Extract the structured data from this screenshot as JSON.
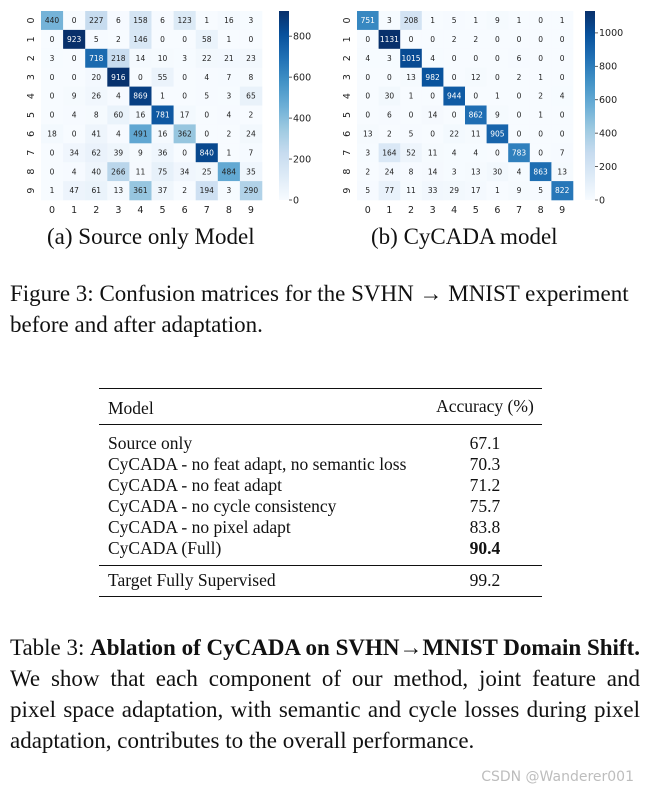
{
  "figure": {
    "left_caption": "(a) Source only Model",
    "right_caption": "(b) CyCADA model",
    "caption_label": "Figure 3:",
    "caption_text_1": "Confusion matrices for the SVHN",
    "caption_arrow": "→",
    "caption_text_2": "MNIST experiment before and after adaptation.",
    "colormap": [
      "#f7fbff",
      "#deebf7",
      "#c6dbef",
      "#9ecae1",
      "#6baed6",
      "#4292c6",
      "#2171b5",
      "#08519c",
      "#08306b"
    ]
  },
  "chart_data": [
    {
      "type": "heatmap",
      "title": "(a) Source only Model",
      "x_ticks": [
        "0",
        "1",
        "2",
        "3",
        "4",
        "5",
        "6",
        "7",
        "8",
        "9"
      ],
      "y_ticks": [
        "0",
        "1",
        "2",
        "3",
        "4",
        "5",
        "6",
        "7",
        "8",
        "9"
      ],
      "colorbar_ticks": [
        0,
        200,
        400,
        600,
        800
      ],
      "vmax": 923,
      "values": [
        [
          440,
          0,
          227,
          6,
          158,
          6,
          123,
          1,
          16,
          3
        ],
        [
          0,
          923,
          5,
          2,
          146,
          0,
          0,
          58,
          1,
          0
        ],
        [
          3,
          0,
          718,
          218,
          14,
          10,
          3,
          22,
          21,
          23
        ],
        [
          0,
          0,
          20,
          916,
          0,
          55,
          0,
          4,
          7,
          8
        ],
        [
          0,
          9,
          26,
          4,
          869,
          1,
          0,
          5,
          3,
          65
        ],
        [
          0,
          4,
          8,
          60,
          16,
          781,
          17,
          0,
          4,
          2
        ],
        [
          18,
          0,
          41,
          4,
          491,
          16,
          362,
          0,
          2,
          24
        ],
        [
          0,
          34,
          62,
          39,
          9,
          36,
          0,
          840,
          1,
          7
        ],
        [
          0,
          4,
          40,
          266,
          11,
          75,
          34,
          25,
          484,
          35
        ],
        [
          1,
          47,
          61,
          13,
          361,
          37,
          2,
          194,
          3,
          290
        ]
      ]
    },
    {
      "type": "heatmap",
      "title": "(b) CyCADA model",
      "x_ticks": [
        "0",
        "1",
        "2",
        "3",
        "4",
        "5",
        "6",
        "7",
        "8",
        "9"
      ],
      "y_ticks": [
        "0",
        "1",
        "2",
        "3",
        "4",
        "5",
        "6",
        "7",
        "8",
        "9"
      ],
      "colorbar_ticks": [
        0,
        200,
        400,
        600,
        800,
        1000
      ],
      "vmax": 1131,
      "values": [
        [
          751,
          3,
          208,
          1,
          5,
          1,
          9,
          1,
          0,
          1
        ],
        [
          0,
          1131,
          0,
          0,
          2,
          2,
          0,
          0,
          0,
          0
        ],
        [
          4,
          3,
          1015,
          4,
          0,
          0,
          0,
          6,
          0,
          0
        ],
        [
          0,
          0,
          13,
          982,
          0,
          12,
          0,
          2,
          1,
          0
        ],
        [
          0,
          30,
          1,
          0,
          944,
          0,
          1,
          0,
          2,
          4
        ],
        [
          0,
          6,
          0,
          14,
          0,
          862,
          9,
          0,
          1,
          0
        ],
        [
          13,
          2,
          5,
          0,
          22,
          11,
          905,
          0,
          0,
          0
        ],
        [
          3,
          164,
          52,
          11,
          4,
          4,
          0,
          783,
          0,
          7
        ],
        [
          2,
          24,
          8,
          14,
          3,
          13,
          30,
          4,
          863,
          13
        ],
        [
          5,
          77,
          11,
          33,
          29,
          17,
          1,
          9,
          5,
          822
        ]
      ]
    }
  ],
  "table": {
    "header_model": "Model",
    "header_accuracy": "Accuracy (%)",
    "rows": [
      {
        "model": "Source only",
        "accuracy": "67.1"
      },
      {
        "model": "CyCADA - no feat adapt, no semantic loss",
        "accuracy": "70.3"
      },
      {
        "model": "CyCADA - no feat adapt",
        "accuracy": "71.2"
      },
      {
        "model": "CyCADA - no cycle consistency",
        "accuracy": "75.7"
      },
      {
        "model": "CyCADA - no pixel adapt",
        "accuracy": "83.8"
      },
      {
        "model": "CyCADA (Full)",
        "accuracy": "90.4"
      }
    ],
    "target_row": {
      "model": "Target Fully Supervised",
      "accuracy": "99.2"
    },
    "caption_label": "Table 3:",
    "caption_bold": "Ablation of CyCADA on SVHN→MNIST Domain Shift.",
    "caption_text": "We show that each component of our method, joint feature and pixel space adaptation, with semantic and cycle losses during pixel adaptation, contributes to the overall performance."
  },
  "watermark": "CSDN @Wanderer001"
}
